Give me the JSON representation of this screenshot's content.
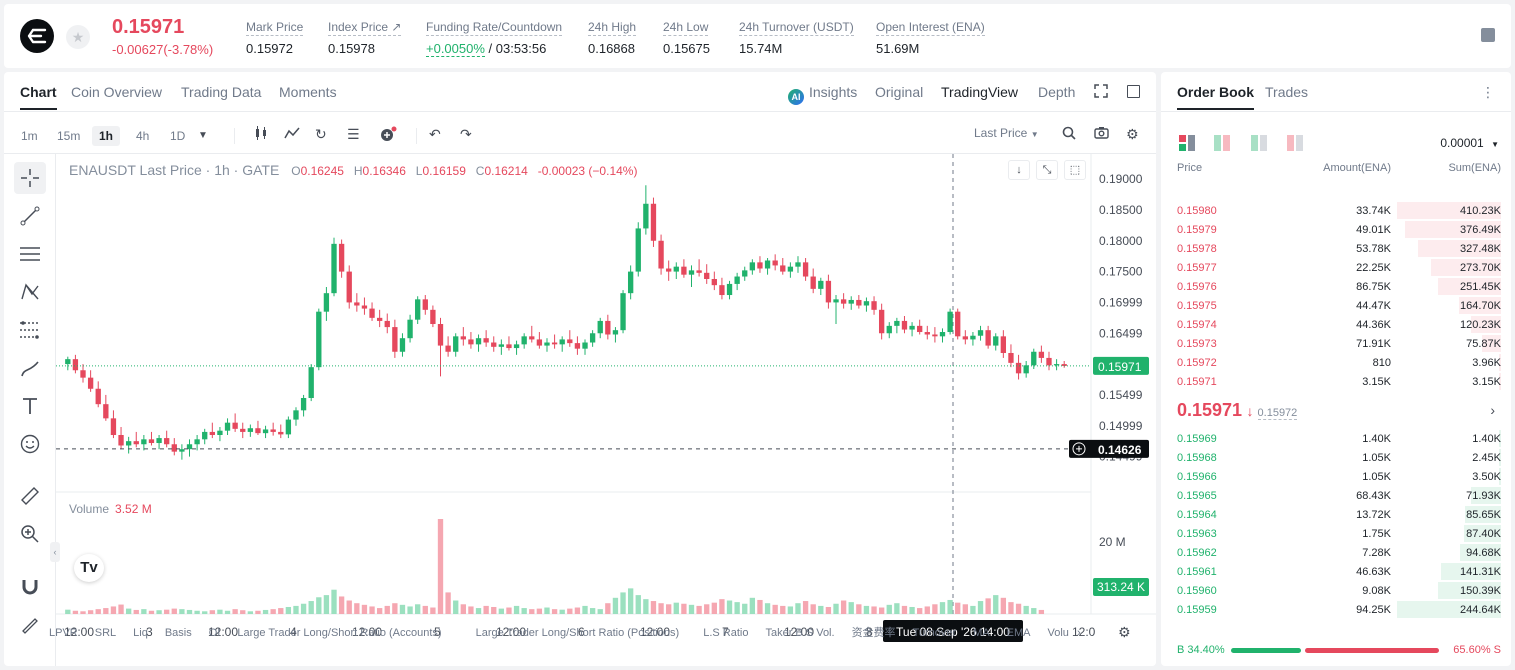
{
  "header": {
    "price": "0.15971",
    "change": "-0.00627(-3.78%)",
    "stats": [
      {
        "label": "Mark Price",
        "value": "0.15972"
      },
      {
        "label": "Index Price ↗",
        "value": "0.15978"
      },
      {
        "label": "Funding Rate/Countdown",
        "value_green": "+0.0050%",
        "value": " / 03:53:56"
      },
      {
        "label": "24h High",
        "value": "0.16868"
      },
      {
        "label": "24h Low",
        "value": "0.15675"
      },
      {
        "label": "24h Turnover (USDT)",
        "value": "15.74M"
      },
      {
        "label": "Open Interest (ENA)",
        "value": "51.69M"
      }
    ]
  },
  "chart_tabs": [
    "Chart",
    "Coin Overview",
    "Trading Data",
    "Moments"
  ],
  "view_tabs": {
    "insights": "Insights",
    "original": "Original",
    "tradingview": "TradingView",
    "depth": "Depth",
    "ai_badge": "AI"
  },
  "intervals": [
    "1m",
    "15m",
    "1h",
    "4h",
    "1D"
  ],
  "price_type": "Last Price",
  "legend": {
    "symbol": "ENAUSDT Last Price · 1h · GATE",
    "o": "0.16245",
    "h": "0.16346",
    "l": "0.16159",
    "c": "0.16214",
    "chg": "-0.00023 (−0.14%)"
  },
  "volume": {
    "label": "Volume",
    "value": "3.52 M",
    "axis_label": "20 M",
    "last_label": "313.24 K"
  },
  "price_axis": [
    "0.19000",
    "0.18500",
    "0.18000",
    "0.17500",
    "0.16999",
    "0.16499",
    "0.15999",
    "0.15499",
    "0.14999",
    "0.14499"
  ],
  "price_tags": {
    "last": "0.15971",
    "cursor": "0.14626"
  },
  "time_axis": [
    "12:00",
    "3",
    "12:00",
    "4",
    "12:00",
    "5",
    "12:00",
    "6",
    "12:00",
    "7",
    "12:00",
    "8",
    "12:0"
  ],
  "crosshair_time": "Tue 08 Sep '26   14:00",
  "indicators": [
    "LPVR",
    "SRL",
    "Liq",
    "Basis",
    "OI",
    "Large Trader Long/Short Ratio (Accounts)",
    "Large Trader Long/Short Ratio (Positions)",
    "L.S Ratio",
    "Taker B.S Vol.",
    "资金费率",
    "Turnover",
    "MA",
    "EMA",
    "Volu"
  ],
  "chart_data": {
    "type": "candlestick",
    "axis_price_range": [
      0.1425,
      0.1918
    ],
    "candles": [
      [
        0.16,
        0.1612,
        0.159,
        0.1608
      ],
      [
        0.1608,
        0.1615,
        0.1585,
        0.159
      ],
      [
        0.159,
        0.16,
        0.157,
        0.1578
      ],
      [
        0.1578,
        0.159,
        0.1555,
        0.156
      ],
      [
        0.156,
        0.1572,
        0.153,
        0.1535
      ],
      [
        0.1535,
        0.155,
        0.1508,
        0.1512
      ],
      [
        0.1512,
        0.1525,
        0.148,
        0.1485
      ],
      [
        0.1485,
        0.1498,
        0.1462,
        0.1468
      ],
      [
        0.1468,
        0.1482,
        0.1455,
        0.1475
      ],
      [
        0.1475,
        0.149,
        0.1465,
        0.147
      ],
      [
        0.147,
        0.1485,
        0.146,
        0.1478
      ],
      [
        0.1478,
        0.149,
        0.1468,
        0.1472
      ],
      [
        0.1472,
        0.1485,
        0.1462,
        0.148
      ],
      [
        0.148,
        0.1492,
        0.1465,
        0.147
      ],
      [
        0.147,
        0.148,
        0.1452,
        0.1458
      ],
      [
        0.1458,
        0.147,
        0.1445,
        0.1462
      ],
      [
        0.1462,
        0.1478,
        0.145,
        0.147
      ],
      [
        0.147,
        0.1485,
        0.146,
        0.1478
      ],
      [
        0.1478,
        0.1495,
        0.147,
        0.149
      ],
      [
        0.149,
        0.1505,
        0.148,
        0.1485
      ],
      [
        0.1485,
        0.1498,
        0.1475,
        0.1492
      ],
      [
        0.1492,
        0.1512,
        0.1485,
        0.1505
      ],
      [
        0.1505,
        0.152,
        0.149,
        0.1495
      ],
      [
        0.1495,
        0.1505,
        0.148,
        0.149
      ],
      [
        0.149,
        0.1502,
        0.1482,
        0.1496
      ],
      [
        0.1496,
        0.1508,
        0.1485,
        0.1488
      ],
      [
        0.1488,
        0.15,
        0.148,
        0.1494
      ],
      [
        0.1494,
        0.1505,
        0.1484,
        0.149
      ],
      [
        0.149,
        0.1502,
        0.148,
        0.1486
      ],
      [
        0.1486,
        0.1515,
        0.148,
        0.151
      ],
      [
        0.151,
        0.153,
        0.15,
        0.1525
      ],
      [
        0.1525,
        0.155,
        0.1515,
        0.1545
      ],
      [
        0.1545,
        0.16,
        0.154,
        0.1595
      ],
      [
        0.1595,
        0.169,
        0.159,
        0.1685
      ],
      [
        0.1685,
        0.1725,
        0.167,
        0.1715
      ],
      [
        0.1715,
        0.1805,
        0.171,
        0.1795
      ],
      [
        0.1795,
        0.1802,
        0.174,
        0.175
      ],
      [
        0.175,
        0.176,
        0.169,
        0.17
      ],
      [
        0.17,
        0.1715,
        0.1685,
        0.1695
      ],
      [
        0.1695,
        0.1708,
        0.168,
        0.169
      ],
      [
        0.169,
        0.17,
        0.167,
        0.1675
      ],
      [
        0.1675,
        0.1688,
        0.166,
        0.167
      ],
      [
        0.167,
        0.1682,
        0.165,
        0.166
      ],
      [
        0.166,
        0.1672,
        0.161,
        0.162
      ],
      [
        0.162,
        0.165,
        0.1612,
        0.1642
      ],
      [
        0.1642,
        0.168,
        0.1635,
        0.1672
      ],
      [
        0.1672,
        0.171,
        0.1665,
        0.1705
      ],
      [
        0.1705,
        0.1712,
        0.168,
        0.1688
      ],
      [
        0.1688,
        0.1695,
        0.166,
        0.1665
      ],
      [
        0.1665,
        0.1675,
        0.158,
        0.163
      ],
      [
        0.163,
        0.1645,
        0.1612,
        0.162
      ],
      [
        0.162,
        0.165,
        0.1612,
        0.1645
      ],
      [
        0.1645,
        0.166,
        0.163,
        0.164
      ],
      [
        0.164,
        0.1652,
        0.1625,
        0.1632
      ],
      [
        0.1632,
        0.1648,
        0.162,
        0.1642
      ],
      [
        0.1642,
        0.1655,
        0.1628,
        0.1635
      ],
      [
        0.1635,
        0.1645,
        0.162,
        0.1628
      ],
      [
        0.1628,
        0.164,
        0.1615,
        0.1632
      ],
      [
        0.1632,
        0.1645,
        0.1622,
        0.1626
      ],
      [
        0.1626,
        0.1638,
        0.1615,
        0.1632
      ],
      [
        0.1632,
        0.165,
        0.1625,
        0.1645
      ],
      [
        0.1645,
        0.1662,
        0.1635,
        0.164
      ],
      [
        0.164,
        0.1652,
        0.1625,
        0.163
      ],
      [
        0.163,
        0.1642,
        0.162,
        0.1635
      ],
      [
        0.1635,
        0.1648,
        0.1625,
        0.1632
      ],
      [
        0.1632,
        0.1645,
        0.162,
        0.164
      ],
      [
        0.164,
        0.1655,
        0.1628,
        0.1634
      ],
      [
        0.1634,
        0.1645,
        0.1615,
        0.1625
      ],
      [
        0.1625,
        0.164,
        0.1615,
        0.1635
      ],
      [
        0.1635,
        0.1655,
        0.1628,
        0.165
      ],
      [
        0.165,
        0.1675,
        0.1642,
        0.167
      ],
      [
        0.167,
        0.168,
        0.164,
        0.1648
      ],
      [
        0.1648,
        0.166,
        0.1635,
        0.1655
      ],
      [
        0.1655,
        0.172,
        0.165,
        0.1715
      ],
      [
        0.1715,
        0.176,
        0.1705,
        0.175
      ],
      [
        0.175,
        0.183,
        0.1742,
        0.182
      ],
      [
        0.182,
        0.189,
        0.181,
        0.186
      ],
      [
        0.186,
        0.187,
        0.179,
        0.18
      ],
      [
        0.18,
        0.181,
        0.1745,
        0.1755
      ],
      [
        0.1755,
        0.1768,
        0.1735,
        0.175
      ],
      [
        0.175,
        0.1765,
        0.1738,
        0.1758
      ],
      [
        0.1758,
        0.177,
        0.174,
        0.1745
      ],
      [
        0.1745,
        0.176,
        0.1725,
        0.1752
      ],
      [
        0.1752,
        0.177,
        0.1742,
        0.1748
      ],
      [
        0.1748,
        0.1762,
        0.173,
        0.1738
      ],
      [
        0.1738,
        0.175,
        0.172,
        0.1728
      ],
      [
        0.1728,
        0.174,
        0.1705,
        0.1712
      ],
      [
        0.1712,
        0.1735,
        0.1705,
        0.173
      ],
      [
        0.173,
        0.1748,
        0.172,
        0.1742
      ],
      [
        0.1742,
        0.1758,
        0.1735,
        0.1752
      ],
      [
        0.1752,
        0.177,
        0.1745,
        0.1765
      ],
      [
        0.1765,
        0.1775,
        0.1748,
        0.1755
      ],
      [
        0.1755,
        0.1772,
        0.1745,
        0.1768
      ],
      [
        0.1768,
        0.1778,
        0.1752,
        0.176
      ],
      [
        0.176,
        0.1772,
        0.1745,
        0.175
      ],
      [
        0.175,
        0.1765,
        0.174,
        0.1758
      ],
      [
        0.1758,
        0.1775,
        0.1748,
        0.1765
      ],
      [
        0.1765,
        0.1772,
        0.1735,
        0.1742
      ],
      [
        0.1742,
        0.1755,
        0.1715,
        0.1722
      ],
      [
        0.1722,
        0.174,
        0.1712,
        0.1735
      ],
      [
        0.1735,
        0.1745,
        0.169,
        0.17
      ],
      [
        0.17,
        0.1712,
        0.1665,
        0.1705
      ],
      [
        0.1705,
        0.1715,
        0.169,
        0.1698
      ],
      [
        0.1698,
        0.171,
        0.1688,
        0.1704
      ],
      [
        0.1704,
        0.1712,
        0.169,
        0.1695
      ],
      [
        0.1695,
        0.1708,
        0.1685,
        0.1702
      ],
      [
        0.1702,
        0.171,
        0.168,
        0.1688
      ],
      [
        0.1688,
        0.1698,
        0.164,
        0.165
      ],
      [
        0.165,
        0.1668,
        0.1642,
        0.1662
      ],
      [
        0.1662,
        0.1675,
        0.165,
        0.167
      ],
      [
        0.167,
        0.1678,
        0.165,
        0.1656
      ],
      [
        0.1656,
        0.1668,
        0.1645,
        0.1662
      ],
      [
        0.1662,
        0.1672,
        0.1648,
        0.1652
      ],
      [
        0.1652,
        0.1662,
        0.164,
        0.1648
      ],
      [
        0.1648,
        0.166,
        0.1635,
        0.1645
      ],
      [
        0.1645,
        0.1658,
        0.1635,
        0.1652
      ],
      [
        0.1652,
        0.169,
        0.1648,
        0.1685
      ],
      [
        0.1685,
        0.169,
        0.164,
        0.1645
      ],
      [
        0.1645,
        0.1655,
        0.1632,
        0.164
      ],
      [
        0.164,
        0.1652,
        0.163,
        0.1646
      ],
      [
        0.1646,
        0.1662,
        0.1638,
        0.1655
      ],
      [
        0.1655,
        0.1662,
        0.1625,
        0.163
      ],
      [
        0.163,
        0.165,
        0.1622,
        0.1645
      ],
      [
        0.1645,
        0.1655,
        0.161,
        0.1618
      ],
      [
        0.1618,
        0.1632,
        0.1595,
        0.1602
      ],
      [
        0.1602,
        0.1615,
        0.1575,
        0.1585
      ],
      [
        0.1585,
        0.1605,
        0.1578,
        0.1598
      ],
      [
        0.1598,
        0.1625,
        0.1592,
        0.162
      ],
      [
        0.162,
        0.163,
        0.1602,
        0.161
      ],
      [
        0.161,
        0.162,
        0.159,
        0.1598
      ],
      [
        0.1598,
        0.1608,
        0.159,
        0.16
      ],
      [
        0.16,
        0.1605,
        0.1594,
        0.1597
      ]
    ],
    "volumes": [
      0.16,
      0.12,
      0.1,
      0.14,
      0.18,
      0.22,
      0.28,
      0.35,
      0.2,
      0.15,
      0.18,
      0.12,
      0.14,
      0.16,
      0.2,
      0.18,
      0.15,
      0.12,
      0.1,
      0.14,
      0.16,
      0.12,
      0.18,
      0.14,
      0.1,
      0.12,
      0.15,
      0.18,
      0.22,
      0.26,
      0.3,
      0.38,
      0.48,
      0.62,
      0.7,
      0.9,
      0.65,
      0.5,
      0.4,
      0.34,
      0.28,
      0.22,
      0.3,
      0.4,
      0.34,
      0.28,
      0.36,
      0.3,
      0.24,
      3.52,
      0.8,
      0.5,
      0.36,
      0.28,
      0.22,
      0.3,
      0.26,
      0.2,
      0.24,
      0.3,
      0.22,
      0.18,
      0.2,
      0.24,
      0.18,
      0.16,
      0.2,
      0.24,
      0.3,
      0.22,
      0.18,
      0.4,
      0.6,
      0.8,
      0.95,
      0.7,
      0.55,
      0.48,
      0.4,
      0.36,
      0.42,
      0.38,
      0.34,
      0.3,
      0.36,
      0.42,
      0.55,
      0.5,
      0.44,
      0.38,
      0.6,
      0.52,
      0.4,
      0.34,
      0.3,
      0.28,
      0.4,
      0.48,
      0.36,
      0.3,
      0.26,
      0.38,
      0.5,
      0.44,
      0.36,
      0.3,
      0.28,
      0.24,
      0.34,
      0.4,
      0.3,
      0.26,
      0.22,
      0.28,
      0.36,
      0.44,
      0.52,
      0.42,
      0.36,
      0.3,
      0.48,
      0.58,
      0.7,
      0.6,
      0.44,
      0.38,
      0.3,
      0.22,
      0.15
    ],
    "last_price": 0.15971,
    "cursor_price": 0.14626
  },
  "orderbook": {
    "tabs": [
      "Order Book",
      "Trades"
    ],
    "precision": "0.00001",
    "columns": [
      "Price",
      "Amount(ENA)",
      "Sum(ENA)"
    ],
    "asks": [
      {
        "price": "0.15980",
        "amount": "33.74K",
        "sum": "410.23K",
        "fill": 1.0
      },
      {
        "price": "0.15979",
        "amount": "49.01K",
        "sum": "376.49K",
        "fill": 0.92
      },
      {
        "price": "0.15978",
        "amount": "53.78K",
        "sum": "327.48K",
        "fill": 0.8
      },
      {
        "price": "0.15977",
        "amount": "22.25K",
        "sum": "273.70K",
        "fill": 0.67
      },
      {
        "price": "0.15976",
        "amount": "86.75K",
        "sum": "251.45K",
        "fill": 0.61
      },
      {
        "price": "0.15975",
        "amount": "44.47K",
        "sum": "164.70K",
        "fill": 0.4
      },
      {
        "price": "0.15974",
        "amount": "44.36K",
        "sum": "120.23K",
        "fill": 0.29
      },
      {
        "price": "0.15973",
        "amount": "71.91K",
        "sum": "75.87K",
        "fill": 0.18
      },
      {
        "price": "0.15972",
        "amount": "810",
        "sum": "3.96K",
        "fill": 0.01
      },
      {
        "price": "0.15971",
        "amount": "3.15K",
        "sum": "3.15K",
        "fill": 0.01
      }
    ],
    "mid_price": "0.15971",
    "mid_arrow": "↓",
    "mark_price": "0.15972",
    "bids": [
      {
        "price": "0.15969",
        "amount": "1.40K",
        "sum": "1.40K",
        "fill": 0.01
      },
      {
        "price": "0.15968",
        "amount": "1.05K",
        "sum": "2.45K",
        "fill": 0.01
      },
      {
        "price": "0.15966",
        "amount": "1.05K",
        "sum": "3.50K",
        "fill": 0.01
      },
      {
        "price": "0.15965",
        "amount": "68.43K",
        "sum": "71.93K",
        "fill": 0.29
      },
      {
        "price": "0.15964",
        "amount": "13.72K",
        "sum": "85.65K",
        "fill": 0.35
      },
      {
        "price": "0.15963",
        "amount": "1.75K",
        "sum": "87.40K",
        "fill": 0.36
      },
      {
        "price": "0.15962",
        "amount": "7.28K",
        "sum": "94.68K",
        "fill": 0.39
      },
      {
        "price": "0.15961",
        "amount": "46.63K",
        "sum": "141.31K",
        "fill": 0.58
      },
      {
        "price": "0.15960",
        "amount": "9.08K",
        "sum": "150.39K",
        "fill": 0.61
      },
      {
        "price": "0.15959",
        "amount": "94.25K",
        "sum": "244.64K",
        "fill": 1.0
      }
    ],
    "buy_ratio": "B 34.40%",
    "sell_ratio": "65.60% S",
    "buy_fraction": 0.344
  },
  "colors": {
    "up": "#20b26c",
    "down": "#e5485d"
  }
}
